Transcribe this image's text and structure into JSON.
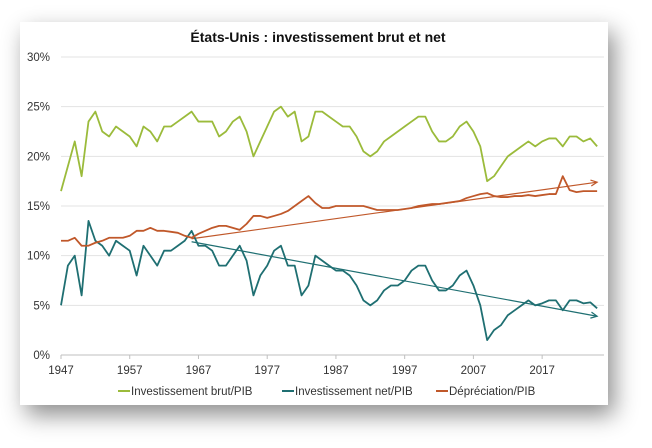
{
  "chart_data": {
    "type": "line",
    "title": "États-Unis : investissement brut et net",
    "xlabel": "",
    "ylabel": "",
    "xlim": [
      1947,
      2026
    ],
    "ylim": [
      0,
      30
    ],
    "y_ticks": [
      "0%",
      "5%",
      "10%",
      "15%",
      "20%",
      "25%",
      "30%"
    ],
    "x_ticks": [
      "1947",
      "1957",
      "1967",
      "1977",
      "1987",
      "1997",
      "2007",
      "2017"
    ],
    "grid": true,
    "legend_position": "bottom",
    "x": [
      1947,
      1948,
      1949,
      1950,
      1951,
      1952,
      1953,
      1954,
      1955,
      1956,
      1957,
      1958,
      1959,
      1960,
      1961,
      1962,
      1963,
      1964,
      1965,
      1966,
      1967,
      1968,
      1969,
      1970,
      1971,
      1972,
      1973,
      1974,
      1975,
      1976,
      1977,
      1978,
      1979,
      1980,
      1981,
      1982,
      1983,
      1984,
      1985,
      1986,
      1987,
      1988,
      1989,
      1990,
      1991,
      1992,
      1993,
      1994,
      1995,
      1996,
      1997,
      1998,
      1999,
      2000,
      2001,
      2002,
      2003,
      2004,
      2005,
      2006,
      2007,
      2008,
      2009,
      2010,
      2011,
      2012,
      2013,
      2014,
      2015,
      2016,
      2017,
      2018,
      2019,
      2020,
      2021,
      2022,
      2023,
      2024,
      2025
    ],
    "series": [
      {
        "name": "Investissement brut/PIB",
        "color": "#9bbb3b",
        "values": [
          16.5,
          19,
          21.5,
          18,
          23.5,
          24.5,
          22.5,
          22,
          23,
          22.5,
          22,
          21,
          23,
          22.5,
          21.5,
          23,
          23,
          23.5,
          24,
          24.5,
          23.5,
          23.5,
          23.5,
          22,
          22.5,
          23.5,
          24,
          22.5,
          20,
          21.5,
          23,
          24.5,
          25,
          24,
          24.5,
          21.5,
          22,
          24.5,
          24.5,
          24,
          23.5,
          23,
          23,
          22,
          20.5,
          20,
          20.5,
          21.5,
          22,
          22.5,
          23,
          23.5,
          24,
          24,
          22.5,
          21.5,
          21.5,
          22,
          23,
          23.5,
          22.5,
          21,
          17.5,
          18,
          19,
          20,
          20.5,
          21,
          21.5,
          21,
          21.5,
          21.8,
          21.8,
          21,
          22,
          22,
          21.5,
          21.8,
          21
        ]
      },
      {
        "name": "Investissement net/PIB",
        "color": "#1f6f72",
        "values": [
          5,
          9,
          10,
          6,
          13.5,
          11.5,
          11,
          10,
          11.5,
          11,
          10.5,
          8,
          11,
          10,
          9,
          10.5,
          10.5,
          11,
          11.5,
          12.5,
          11,
          11,
          10.5,
          9,
          9,
          10,
          11,
          9.5,
          6,
          8,
          9,
          10.5,
          11,
          9,
          9,
          6,
          7,
          10,
          9.5,
          9,
          8.5,
          8.5,
          8,
          7,
          5.5,
          5,
          5.5,
          6.5,
          7,
          7,
          7.5,
          8.5,
          9,
          9,
          7.5,
          6.5,
          6.5,
          7,
          8,
          8.5,
          7,
          5,
          1.5,
          2.5,
          3,
          4,
          4.5,
          5,
          5.5,
          5,
          5.2,
          5.5,
          5.5,
          4.5,
          5.5,
          5.5,
          5.2,
          5.3,
          4.7
        ]
      },
      {
        "name": "Dépréciation/PIB",
        "color": "#c0582a",
        "values": [
          11.5,
          11.5,
          11.8,
          11,
          11,
          11.3,
          11.5,
          11.8,
          11.8,
          11.8,
          12,
          12.5,
          12.5,
          12.8,
          12.5,
          12.5,
          12.4,
          12.3,
          12,
          11.8,
          12.2,
          12.5,
          12.8,
          13,
          13,
          12.8,
          12.6,
          13.2,
          14,
          14,
          13.8,
          14,
          14.2,
          14.5,
          15,
          15.5,
          16,
          15.3,
          14.8,
          14.8,
          15,
          15,
          15,
          15,
          15,
          14.8,
          14.6,
          14.6,
          14.6,
          14.6,
          14.7,
          14.8,
          15,
          15.1,
          15.2,
          15.2,
          15.3,
          15.4,
          15.5,
          15.8,
          16,
          16.2,
          16.3,
          16,
          15.9,
          15.9,
          16,
          16,
          16.1,
          16,
          16.1,
          16.2,
          16.2,
          18,
          16.6,
          16.4,
          16.5,
          16.5,
          16.5
        ]
      }
    ],
    "trendlines": [
      {
        "series": "Dépréciation/PIB",
        "color": "#c0582a",
        "x": [
          1966,
          2025
        ],
        "y": [
          11.7,
          17.4
        ]
      },
      {
        "series": "Investissement net/PIB",
        "color": "#1f6f72",
        "x": [
          1966,
          2025
        ],
        "y": [
          11.4,
          3.9
        ]
      }
    ]
  }
}
